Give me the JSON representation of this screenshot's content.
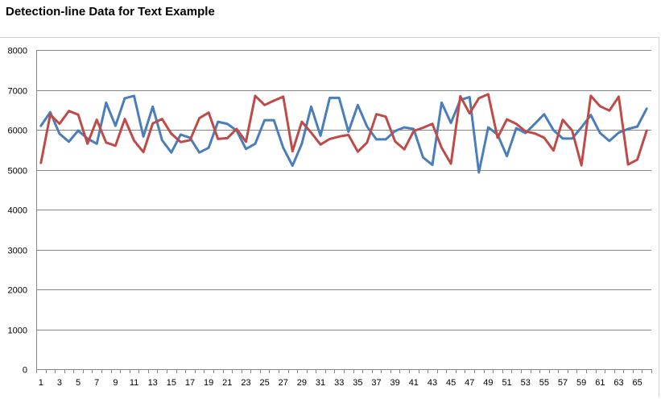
{
  "chart_data": {
    "type": "line",
    "title": "Detection-line Data for Text Example",
    "xlabel": "",
    "ylabel": "",
    "ylim": [
      0,
      8000
    ],
    "yticks": [
      0,
      1000,
      2000,
      3000,
      4000,
      5000,
      6000,
      7000,
      8000
    ],
    "ytick_labels": [
      "0",
      "1000",
      "2000",
      "3000",
      "4000",
      "5000",
      "6000",
      "7000",
      "8000"
    ],
    "x": [
      1,
      2,
      3,
      4,
      5,
      6,
      7,
      8,
      9,
      10,
      11,
      12,
      13,
      14,
      15,
      16,
      17,
      18,
      19,
      20,
      21,
      22,
      23,
      24,
      25,
      26,
      27,
      28,
      29,
      30,
      31,
      32,
      33,
      34,
      35,
      36,
      37,
      38,
      39,
      40,
      41,
      42,
      43,
      44,
      45,
      46,
      47,
      48,
      49,
      50,
      51,
      52,
      53,
      54,
      55,
      56,
      57,
      58,
      59,
      60,
      61,
      62,
      63,
      64,
      65,
      66
    ],
    "xtick_labels": [
      "1",
      "3",
      "5",
      "7",
      "9",
      "11",
      "13",
      "15",
      "17",
      "19",
      "21",
      "23",
      "25",
      "27",
      "29",
      "31",
      "33",
      "35",
      "37",
      "39",
      "41",
      "43",
      "45",
      "47",
      "49",
      "51",
      "53",
      "55",
      "57",
      "59",
      "61",
      "63",
      "65"
    ],
    "grid": true,
    "legend": "none",
    "colors": {
      "series1": "#4a7ebb",
      "series2": "#be4b48",
      "grid": "#868686",
      "axis": "#868686"
    },
    "series": [
      {
        "values": [
          6100,
          6440,
          5900,
          5700,
          5980,
          5780,
          5650,
          6680,
          6100,
          6790,
          6850,
          5830,
          6580,
          5740,
          5430,
          5880,
          5800,
          5430,
          5550,
          6200,
          6150,
          5980,
          5520,
          5650,
          6240,
          6240,
          5550,
          5100,
          5650,
          6580,
          5850,
          6800,
          6800,
          5950,
          6620,
          6080,
          5760,
          5760,
          5970,
          6060,
          6020,
          5310,
          5120,
          6680,
          6170,
          6750,
          6820,
          4930,
          6060,
          5880,
          5340,
          6040,
          5920,
          6150,
          6390,
          5990,
          5780,
          5780,
          6060,
          6370,
          5920,
          5720,
          5930,
          6020,
          6080,
          6530
        ]
      },
      {
        "values": [
          5170,
          6380,
          6150,
          6470,
          6380,
          5650,
          6250,
          5680,
          5600,
          6270,
          5730,
          5440,
          6160,
          6270,
          5900,
          5690,
          5740,
          6290,
          6430,
          5770,
          5790,
          6020,
          5700,
          6850,
          6620,
          6730,
          6830,
          5460,
          6200,
          5930,
          5630,
          5770,
          5830,
          5870,
          5450,
          5680,
          6390,
          6330,
          5710,
          5510,
          5970,
          6050,
          6150,
          5550,
          5150,
          6840,
          6410,
          6790,
          6890,
          5800,
          6260,
          6150,
          5960,
          5910,
          5800,
          5480,
          6250,
          5980,
          5110,
          6850,
          6590,
          6480,
          6830,
          5130,
          5250,
          5980
        ]
      }
    ]
  }
}
